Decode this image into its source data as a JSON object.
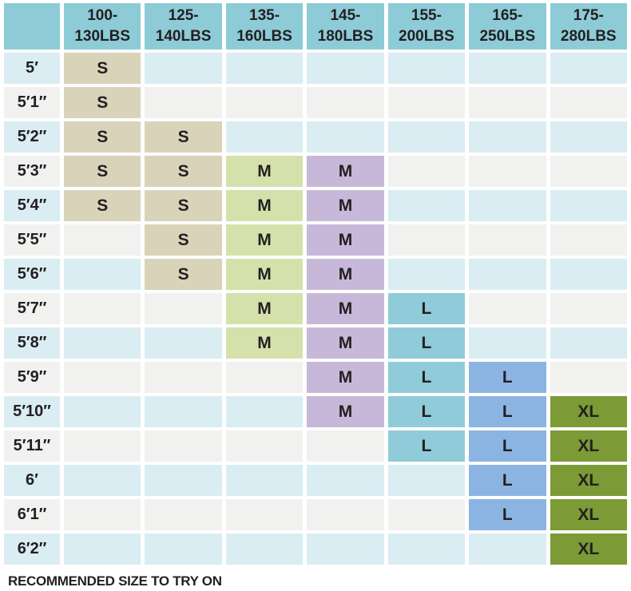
{
  "colors": {
    "header_bg": "#8dcbd7",
    "row_blue": "#d9edf3",
    "row_gray": "#f1f1f0",
    "text": "#231f20",
    "background": "#ffffff",
    "column_fill": [
      "#d9d3ba",
      "#d9d3ba",
      "#d5e1ab",
      "#c7b8d9",
      "#8fcbd9",
      "#8cb4e3",
      "#7c9a35"
    ]
  },
  "chart_data": {
    "type": "table",
    "title": "",
    "caption": "RECOMMENDED SIZE TO TRY ON",
    "columns": [
      "100-130LBS",
      "125-140LBS",
      "135-160LBS",
      "145-180LBS",
      "155-200LBS",
      "165-250LBS",
      "175-280LBS"
    ],
    "rows": [
      "5′",
      "5′1″",
      "5′2″",
      "5′3″",
      "5′4″",
      "5′5″",
      "5′6″",
      "5′7″",
      "5′8″",
      "5′9″",
      "5′10″",
      "5′11″",
      "6′",
      "6′1″",
      "6′2″"
    ],
    "cells": [
      [
        "S",
        "",
        "",
        "",
        "",
        "",
        ""
      ],
      [
        "S",
        "",
        "",
        "",
        "",
        "",
        ""
      ],
      [
        "S",
        "S",
        "",
        "",
        "",
        "",
        ""
      ],
      [
        "S",
        "S",
        "M",
        "M",
        "",
        "",
        ""
      ],
      [
        "S",
        "S",
        "M",
        "M",
        "",
        "",
        ""
      ],
      [
        "",
        "S",
        "M",
        "M",
        "",
        "",
        ""
      ],
      [
        "",
        "S",
        "M",
        "M",
        "",
        "",
        ""
      ],
      [
        "",
        "",
        "M",
        "M",
        "L",
        "",
        ""
      ],
      [
        "",
        "",
        "M",
        "M",
        "L",
        "",
        ""
      ],
      [
        "",
        "",
        "",
        "M",
        "L",
        "L",
        ""
      ],
      [
        "",
        "",
        "",
        "M",
        "L",
        "L",
        "XL"
      ],
      [
        "",
        "",
        "",
        "",
        "L",
        "L",
        "XL"
      ],
      [
        "",
        "",
        "",
        "",
        "",
        "L",
        "XL"
      ],
      [
        "",
        "",
        "",
        "",
        "",
        "L",
        "XL"
      ],
      [
        "",
        "",
        "",
        "",
        "",
        "",
        "XL"
      ]
    ]
  }
}
